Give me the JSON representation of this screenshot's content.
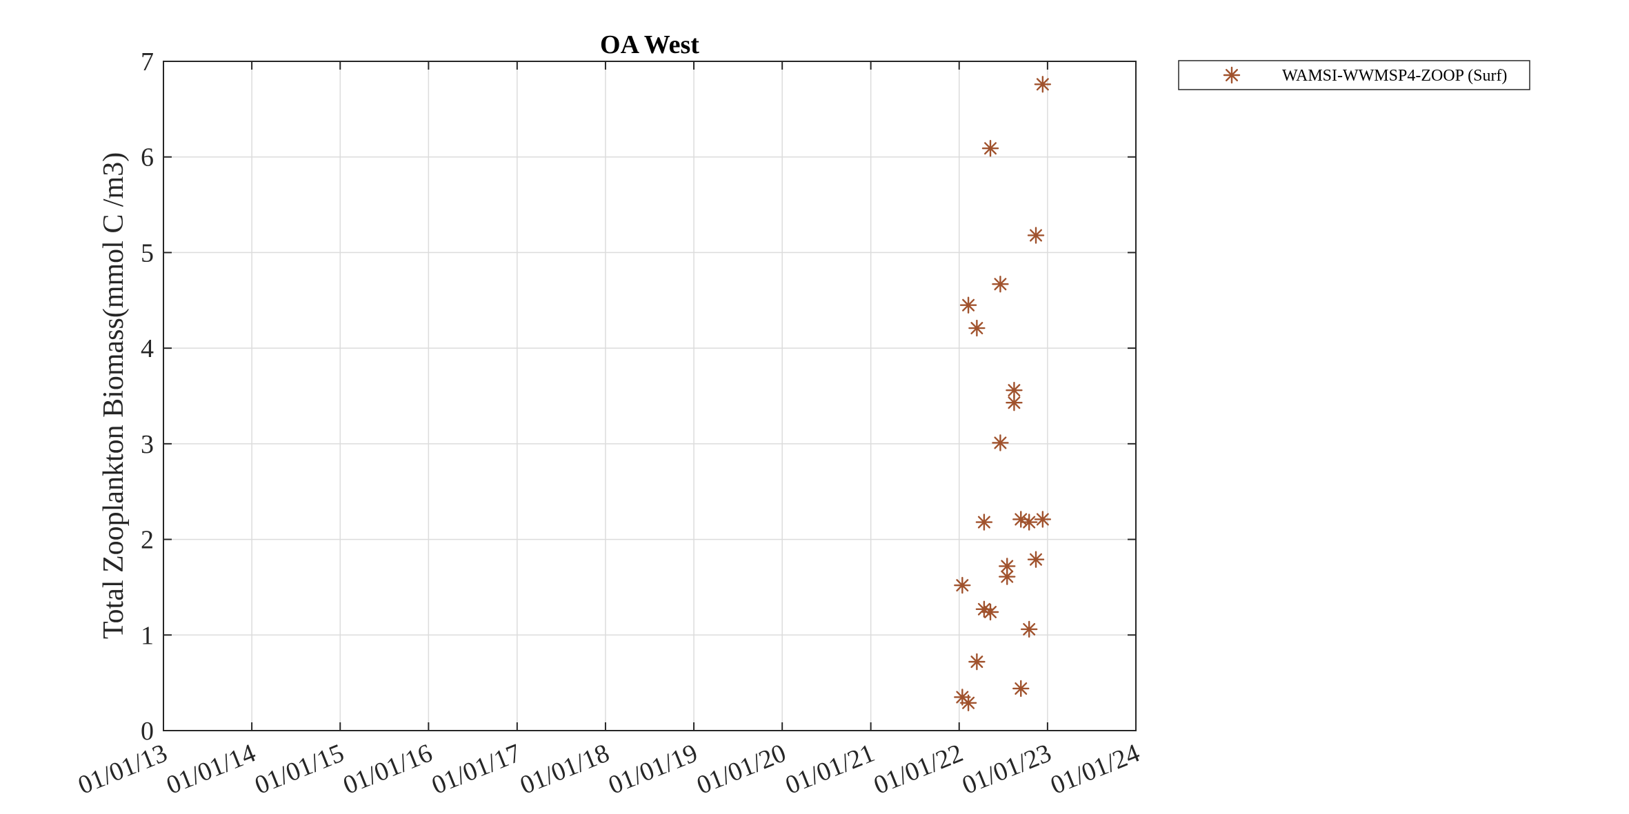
{
  "chart_data": {
    "type": "scatter",
    "title": "OA West",
    "xlabel": "",
    "ylabel": "Total Zooplankton Biomass(mmol C /m3)",
    "xlim": [
      "2013-01-01",
      "2024-01-01"
    ],
    "ylim": [
      0,
      7
    ],
    "x_tick_labels": [
      "01/01/13",
      "01/01/14",
      "01/01/15",
      "01/01/16",
      "01/01/17",
      "01/01/18",
      "01/01/19",
      "01/01/20",
      "01/01/21",
      "01/01/22",
      "01/01/23",
      "01/01/24"
    ],
    "y_ticks": [
      0,
      1,
      2,
      3,
      4,
      5,
      6,
      7
    ],
    "grid": true,
    "legend_position": "outside-top-right",
    "marker": "asterisk",
    "series": [
      {
        "name": "WAMSI-WWMSP4-ZOOP (Surf)",
        "color": "#A0522D",
        "points": [
          {
            "x": "2022-01-14",
            "y": 1.52
          },
          {
            "x": "2022-01-14",
            "y": 0.35
          },
          {
            "x": "2022-02-08",
            "y": 4.45
          },
          {
            "x": "2022-02-08",
            "y": 0.29
          },
          {
            "x": "2022-03-15",
            "y": 4.21
          },
          {
            "x": "2022-03-15",
            "y": 0.72
          },
          {
            "x": "2022-04-14",
            "y": 2.18
          },
          {
            "x": "2022-04-14",
            "y": 1.27
          },
          {
            "x": "2022-05-10",
            "y": 6.09
          },
          {
            "x": "2022-05-10",
            "y": 1.24
          },
          {
            "x": "2022-06-20",
            "y": 4.67
          },
          {
            "x": "2022-06-20",
            "y": 3.01
          },
          {
            "x": "2022-07-18",
            "y": 1.72
          },
          {
            "x": "2022-07-18",
            "y": 1.61
          },
          {
            "x": "2022-08-16",
            "y": 3.56
          },
          {
            "x": "2022-08-16",
            "y": 3.43
          },
          {
            "x": "2022-09-13",
            "y": 2.21
          },
          {
            "x": "2022-09-13",
            "y": 0.44
          },
          {
            "x": "2022-10-17",
            "y": 2.18
          },
          {
            "x": "2022-10-17",
            "y": 1.06
          },
          {
            "x": "2022-11-14",
            "y": 5.18
          },
          {
            "x": "2022-11-14",
            "y": 1.79
          },
          {
            "x": "2022-12-12",
            "y": 6.76
          },
          {
            "x": "2022-12-12",
            "y": 2.21
          }
        ]
      }
    ]
  }
}
